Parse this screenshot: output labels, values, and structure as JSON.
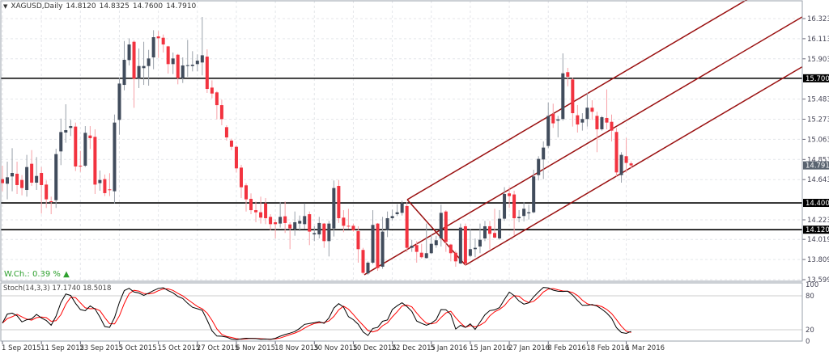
{
  "header": {
    "symbol": "XAGUSD,Daily",
    "open": "14.8120",
    "high": "14.8325",
    "low": "14.7600",
    "close": "14.7910"
  },
  "weekly_change": {
    "label": "W.Ch.: 0.39 %",
    "direction": "up",
    "color": "#2ea02e"
  },
  "stochastic": {
    "label": "Stoch(14,3,3) 17.1740 18.5018",
    "levels": [
      "100",
      "80",
      "20",
      "0"
    ],
    "main_color": "#000000",
    "signal_color": "#ff0000"
  },
  "colors": {
    "bull": "#414c5c",
    "bear": "#f2333f",
    "pitchfork": "#9a1010",
    "hline": "#000000"
  },
  "chart_data": {
    "type": "candlestick",
    "symbol": "XAGUSD",
    "timeframe": "Daily",
    "ylim": [
      13.599,
      16.323
    ],
    "price_ticks": [
      "16.3230",
      "16.1130",
      "15.9030",
      "15.4830",
      "15.2730",
      "15.0630",
      "14.8530",
      "14.6430",
      "14.2230",
      "14.0190",
      "13.8090",
      "13.5990"
    ],
    "current_price": "14.7910",
    "horizontal_lines": [
      "15.7000",
      "14.4000",
      "14.1204"
    ],
    "pitchfork": {
      "a": {
        "bar": 74.25,
        "price": 13.65
      },
      "b": {
        "bar": 83.06,
        "price": 14.434
      },
      "c": {
        "bar": 95.0,
        "price": 13.751
      }
    },
    "date_ticks": [
      {
        "label": "1 Sep 2015",
        "bar": 0
      },
      {
        "label": "11 Sep 2015",
        "bar": 8
      },
      {
        "label": "23 Sep 2015",
        "bar": 16
      },
      {
        "label": "5 Oct 2015",
        "bar": 24
      },
      {
        "label": "15 Oct 2015",
        "bar": 32
      },
      {
        "label": "27 Oct 2015",
        "bar": 40
      },
      {
        "label": "6 Nov 2015",
        "bar": 48
      },
      {
        "label": "18 Nov 2015",
        "bar": 56
      },
      {
        "label": "30 Nov 2015",
        "bar": 64
      },
      {
        "label": "10 Dec 2015",
        "bar": 72
      },
      {
        "label": "22 Dec 2015",
        "bar": 80
      },
      {
        "label": "5 Jan 2016",
        "bar": 88
      },
      {
        "label": "15 Jan 2016",
        "bar": 96
      },
      {
        "label": "27 Jan 2016",
        "bar": 104
      },
      {
        "label": "8 Feb 2016",
        "bar": 112
      },
      {
        "label": "18 Feb 2016",
        "bar": 120
      },
      {
        "label": "1 Mar 2016",
        "bar": 128
      }
    ],
    "ohlc": [
      [
        14.648,
        14.788,
        14.521,
        14.606
      ],
      [
        14.6,
        14.83,
        14.437,
        14.667
      ],
      [
        14.676,
        14.971,
        14.521,
        14.712
      ],
      [
        14.704,
        14.83,
        14.493,
        14.586
      ],
      [
        14.639,
        14.69,
        14.479,
        14.555
      ],
      [
        14.535,
        14.901,
        14.465,
        14.774
      ],
      [
        14.808,
        14.951,
        14.577,
        14.611
      ],
      [
        14.611,
        14.878,
        14.535,
        14.681
      ],
      [
        14.712,
        14.774,
        14.288,
        14.586
      ],
      [
        14.591,
        14.634,
        14.347,
        14.437
      ],
      [
        14.417,
        14.465,
        14.282,
        14.409
      ],
      [
        14.428,
        14.965,
        14.347,
        14.909
      ],
      [
        14.937,
        15.28,
        14.794,
        15.139
      ],
      [
        15.134,
        15.429,
        15.027,
        15.159
      ],
      [
        15.182,
        15.266,
        15.097,
        15.201
      ],
      [
        15.196,
        15.238,
        14.732,
        14.78
      ],
      [
        14.788,
        14.943,
        14.724,
        14.78
      ],
      [
        14.788,
        15.201,
        14.774,
        15.131
      ],
      [
        15.103,
        15.201,
        14.962,
        15.075
      ],
      [
        15.089,
        15.168,
        14.493,
        14.591
      ],
      [
        14.606,
        14.738,
        14.527,
        14.639
      ],
      [
        14.648,
        14.696,
        14.471,
        14.502
      ],
      [
        14.541,
        14.71,
        14.471,
        14.535
      ],
      [
        14.521,
        15.322,
        14.395,
        15.238
      ],
      [
        15.266,
        15.707,
        15.111,
        15.645
      ],
      [
        15.631,
        16.089,
        15.575,
        15.893
      ],
      [
        15.89,
        16.117,
        15.834,
        16.053
      ],
      [
        16.081,
        16.095,
        15.392,
        15.696
      ],
      [
        15.696,
        16.011,
        15.598,
        15.828
      ],
      [
        15.806,
        16.081,
        15.631,
        15.828
      ],
      [
        15.828,
        15.997,
        15.623,
        15.907
      ],
      [
        15.918,
        16.202,
        15.794,
        16.129
      ],
      [
        16.137,
        16.193,
        15.912,
        16.118
      ],
      [
        16.123,
        16.157,
        15.969,
        16.053
      ],
      [
        16.033,
        16.039,
        15.749,
        15.848
      ],
      [
        15.848,
        15.969,
        15.744,
        15.907
      ],
      [
        15.946,
        15.955,
        15.637,
        15.702
      ],
      [
        15.702,
        15.918,
        15.651,
        15.834
      ],
      [
        15.828,
        16.101,
        15.716,
        15.837
      ],
      [
        15.828,
        15.983,
        15.772,
        15.842
      ],
      [
        15.848,
        15.949,
        15.772,
        15.884
      ],
      [
        15.865,
        16.34,
        15.73,
        15.94
      ],
      [
        15.926,
        16.002,
        15.547,
        15.589
      ],
      [
        15.603,
        15.679,
        15.491,
        15.541
      ],
      [
        15.553,
        15.567,
        15.272,
        15.42
      ],
      [
        15.42,
        15.477,
        15.21,
        15.274
      ],
      [
        15.19,
        15.21,
        15.05,
        15.083
      ],
      [
        15.05,
        15.07,
        14.95,
        14.985
      ],
      [
        14.985,
        15.0,
        14.718,
        14.76
      ],
      [
        14.768,
        14.797,
        14.451,
        14.563
      ],
      [
        14.583,
        14.605,
        14.31,
        14.437
      ],
      [
        14.442,
        14.499,
        14.282,
        14.324
      ],
      [
        14.324,
        14.414,
        14.198,
        14.302
      ],
      [
        14.302,
        14.465,
        14.184,
        14.246
      ],
      [
        14.395,
        14.451,
        14.178,
        14.24
      ],
      [
        14.254,
        14.282,
        14.114,
        14.178
      ],
      [
        14.198,
        14.226,
        14.029,
        14.178
      ],
      [
        14.184,
        14.409,
        14.142,
        14.254
      ],
      [
        14.26,
        14.414,
        14.086,
        14.19
      ],
      [
        14.175,
        14.198,
        13.917,
        14.133
      ],
      [
        14.128,
        14.31,
        14.057,
        14.198
      ],
      [
        14.184,
        14.268,
        14.105,
        14.212
      ],
      [
        14.178,
        14.395,
        14.128,
        14.262
      ],
      [
        14.282,
        14.31,
        13.959,
        14.1
      ],
      [
        14.071,
        14.156,
        14.001,
        14.085
      ],
      [
        14.071,
        14.254,
        14.029,
        14.19
      ],
      [
        14.184,
        14.19,
        13.931,
        14.001
      ],
      [
        14.001,
        14.212,
        13.841,
        14.184
      ],
      [
        14.133,
        14.634,
        14.049,
        14.555
      ],
      [
        14.577,
        14.639,
        14.19,
        14.24
      ],
      [
        14.246,
        14.324,
        14.094,
        14.161
      ],
      [
        14.161,
        14.338,
        14.128,
        14.156
      ],
      [
        14.161,
        14.184,
        14.1,
        14.114
      ],
      [
        14.105,
        14.156,
        13.776,
        13.917
      ],
      [
        13.909,
        13.931,
        13.656,
        13.67
      ],
      [
        13.664,
        13.79,
        13.65,
        13.776
      ],
      [
        13.776,
        14.324,
        13.762,
        14.17
      ],
      [
        14.184,
        14.19,
        13.692,
        13.72
      ],
      [
        13.734,
        14.254,
        13.712,
        14.1
      ],
      [
        14.114,
        14.31,
        14.043,
        14.24
      ],
      [
        14.24,
        14.33,
        14.218,
        14.262
      ],
      [
        14.282,
        14.386,
        14.262,
        14.302
      ],
      [
        14.296,
        14.423,
        14.268,
        14.395
      ],
      [
        14.367,
        14.409,
        13.889,
        13.931
      ],
      [
        13.931,
        14.015,
        13.889,
        13.953
      ],
      [
        13.959,
        14.001,
        13.776,
        13.889
      ],
      [
        13.88,
        13.973,
        13.819,
        13.833
      ],
      [
        13.824,
        14.184,
        13.819,
        13.875
      ],
      [
        13.875,
        14.071,
        13.869,
        13.973
      ],
      [
        13.959,
        14.057,
        13.931,
        14.01
      ],
      [
        14.029,
        14.381,
        13.945,
        14.296
      ],
      [
        14.31,
        14.324,
        13.889,
        13.993
      ],
      [
        13.965,
        13.973,
        13.79,
        13.875
      ],
      [
        13.88,
        13.903,
        13.734,
        13.79
      ],
      [
        13.768,
        14.184,
        13.762,
        14.142
      ],
      [
        14.156,
        14.184,
        13.748,
        13.768
      ],
      [
        13.847,
        14.128,
        13.833,
        13.917
      ],
      [
        13.917,
        14.029,
        13.833,
        13.931
      ],
      [
        13.945,
        14.184,
        13.875,
        14.015
      ],
      [
        14.029,
        14.212,
        14.001,
        14.156
      ],
      [
        14.156,
        14.212,
        13.917,
        14.077
      ],
      [
        14.086,
        14.339,
        14.029,
        14.038
      ],
      [
        14.029,
        14.325,
        14.015,
        14.235
      ],
      [
        14.235,
        14.564,
        14.212,
        14.493
      ],
      [
        14.499,
        14.564,
        14.347,
        14.471
      ],
      [
        14.488,
        14.527,
        14.058,
        14.24
      ],
      [
        14.24,
        14.325,
        14.198,
        14.254
      ],
      [
        14.263,
        14.409,
        14.207,
        14.339
      ],
      [
        14.291,
        14.381,
        14.226,
        14.302
      ],
      [
        14.302,
        14.746,
        14.291,
        14.676
      ],
      [
        14.69,
        14.887,
        14.634,
        14.859
      ],
      [
        14.853,
        15.041,
        14.648,
        14.977
      ],
      [
        14.994,
        15.449,
        14.971,
        15.308
      ],
      [
        15.328,
        15.435,
        15.182,
        15.23
      ],
      [
        15.258,
        15.308,
        15.084,
        15.272
      ],
      [
        15.275,
        15.96,
        15.258,
        15.752
      ],
      [
        15.764,
        15.809,
        15.617,
        15.716
      ],
      [
        15.688,
        15.707,
        15.196,
        15.336
      ],
      [
        15.314,
        15.421,
        15.134,
        15.218
      ],
      [
        15.238,
        15.336,
        15.154,
        15.275
      ],
      [
        15.275,
        15.547,
        15.196,
        15.393
      ],
      [
        15.393,
        15.471,
        15.266,
        15.351
      ],
      [
        15.308,
        15.351,
        14.929,
        15.168
      ],
      [
        15.168,
        15.308,
        15.154,
        15.294
      ],
      [
        15.286,
        15.584,
        15.168,
        15.238
      ],
      [
        15.246,
        15.322,
        15.041,
        15.154
      ],
      [
        15.14,
        15.182,
        14.676,
        14.718
      ],
      [
        14.69,
        14.929,
        14.611,
        14.901
      ],
      [
        14.887,
        15.078,
        14.718,
        14.817
      ],
      [
        14.812,
        14.8325,
        14.76,
        14.791
      ]
    ]
  }
}
